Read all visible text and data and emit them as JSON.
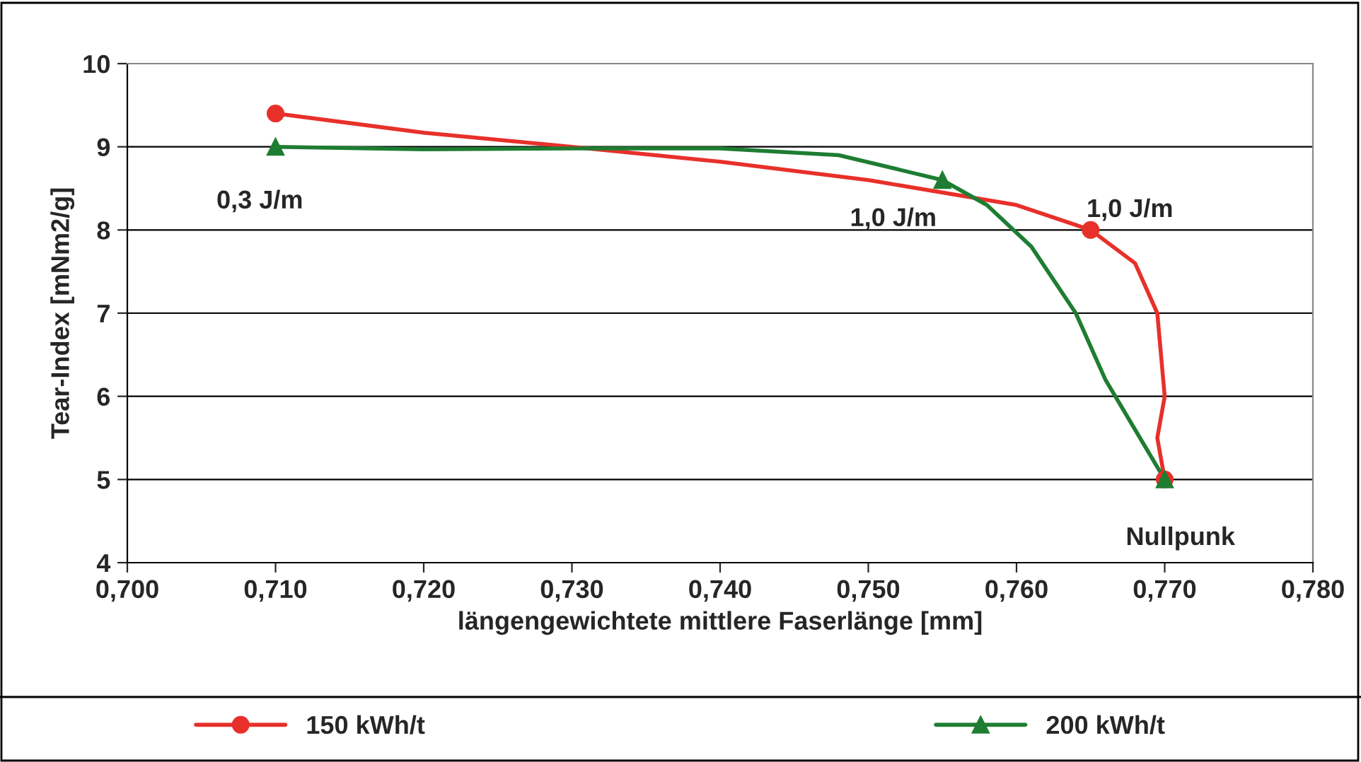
{
  "chart_data": {
    "type": "line",
    "xlabel": "längengewichtete mittlere Faserlänge [mm]",
    "ylabel": "Tear-Index [mNm2/g]",
    "series": [
      {
        "name": "150 kWh/t",
        "color": "#e8302a",
        "marker": "none",
        "x": [
          0.71,
          0.72,
          0.73,
          0.74,
          0.75,
          0.76,
          0.765,
          0.768,
          0.7695,
          0.77,
          0.7695,
          0.77
        ],
        "values": [
          9.4,
          9.17,
          9.0,
          8.82,
          8.6,
          8.3,
          8.0,
          7.6,
          7.0,
          6.0,
          5.5,
          5.0
        ]
      },
      {
        "name": "200 kWh/t",
        "color": "#1e7d32",
        "marker": "none",
        "x": [
          0.71,
          0.72,
          0.73,
          0.74,
          0.748,
          0.755,
          0.758,
          0.761,
          0.764,
          0.766,
          0.768,
          0.77
        ],
        "values": [
          9.0,
          8.97,
          8.98,
          8.98,
          8.9,
          8.6,
          8.3,
          7.8,
          7.0,
          6.2,
          5.6,
          5.0
        ]
      },
      {
        "type": "scatter",
        "color": "#e8302a",
        "marker": "circle",
        "x": [
          0.71,
          0.765,
          0.77
        ],
        "values": [
          9.4,
          8.0,
          5.0
        ]
      },
      {
        "type": "scatter",
        "color": "#1e7d32",
        "marker": "triangle",
        "x": [
          0.71,
          0.755,
          0.77
        ],
        "values": [
          9.0,
          8.6,
          5.0
        ]
      }
    ],
    "xlim": [
      0.7,
      0.78
    ],
    "xticks": [
      {
        "value": 0.7,
        "label": "0,700"
      },
      {
        "value": 0.71,
        "label": "0,710"
      },
      {
        "value": 0.72,
        "label": "0,720"
      },
      {
        "value": 0.73,
        "label": "0,730"
      },
      {
        "value": 0.74,
        "label": "0,740"
      },
      {
        "value": 0.75,
        "label": "0,750"
      },
      {
        "value": 0.76,
        "label": "0,760"
      },
      {
        "value": 0.77,
        "label": "0,770"
      },
      {
        "value": 0.78,
        "label": "0,780"
      }
    ],
    "ylim": [
      4,
      10
    ],
    "yticks": [
      4,
      5,
      6,
      7,
      8,
      9,
      10
    ],
    "annotations": [
      {
        "text": "0,3 J/m",
        "x": 0.71,
        "y": 9.0
      },
      {
        "text": "1,0 J/m",
        "x": 0.755,
        "y": 8.6
      },
      {
        "text": "1,0 J/m",
        "x": 0.765,
        "y": 8.0
      },
      {
        "text": "Nullpunk",
        "x": 0.77,
        "y": 5.0
      }
    ],
    "grid": "y",
    "legend": "bottom",
    "line_style": "solid"
  }
}
